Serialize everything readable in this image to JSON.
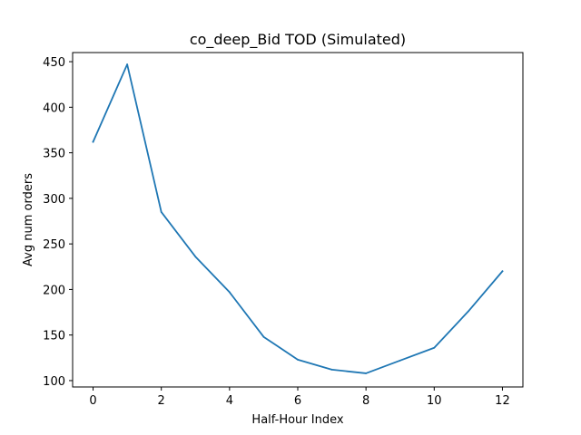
{
  "chart_data": {
    "type": "line",
    "title": "co_deep_Bid TOD (Simulated)",
    "xlabel": "Half-Hour Index",
    "ylabel": "Avg num orders",
    "xlim": [
      -0.6,
      12.6
    ],
    "ylim": [
      93,
      460
    ],
    "xticks": [
      0,
      2,
      4,
      6,
      8,
      10,
      12
    ],
    "yticks": [
      100,
      150,
      200,
      250,
      300,
      350,
      400,
      450
    ],
    "grid": false,
    "series": [
      {
        "color": "#1f77b4",
        "x": [
          0,
          1,
          2,
          3,
          4,
          5,
          6,
          7,
          8,
          9,
          10,
          11,
          12
        ],
        "y": [
          362,
          447,
          285,
          236,
          197,
          148,
          123,
          112,
          108,
          122,
          136,
          176,
          220
        ]
      }
    ]
  }
}
